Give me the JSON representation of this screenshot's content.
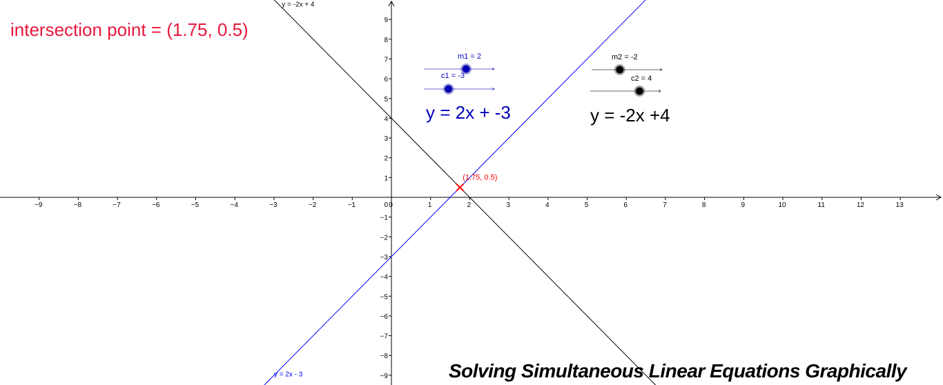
{
  "result": {
    "label": "intersection point = (1.75, 0.5)",
    "color": "#e8173c"
  },
  "equations": [
    {
      "text": "y = 2x + -3",
      "color": "#0000bb"
    },
    {
      "text": "y = -2x +4",
      "color": "#000000"
    }
  ],
  "sliders": [
    {
      "label": "m1 = 2",
      "value": 2,
      "color": "#0000bb"
    },
    {
      "label": "c1 = -3",
      "value": -3,
      "color": "#0000bb"
    },
    {
      "label": "m2 = -2",
      "value": -2,
      "color": "#000000"
    },
    {
      "label": "c2 = 4",
      "value": 4,
      "color": "#000000"
    }
  ],
  "title": "Solving Simultaneous Linear Equations Graphically",
  "chart_data": {
    "type": "line",
    "xlim": [
      -10,
      14
    ],
    "ylim": [
      -9.3,
      10
    ],
    "xticks": [
      -9,
      -8,
      -7,
      -6,
      -5,
      -4,
      -3,
      -2,
      -1,
      0,
      1,
      2,
      3,
      4,
      5,
      6,
      7,
      8,
      9,
      10,
      11,
      12,
      13
    ],
    "yticks": [
      -9,
      -8,
      -7,
      -6,
      -5,
      -4,
      -3,
      -2,
      -1,
      1,
      2,
      3,
      4,
      5,
      6,
      7,
      8,
      9
    ],
    "origin_label": "0",
    "grid": false,
    "series": [
      {
        "name": "y = 2x - 3",
        "slope": 2,
        "intercept": -3,
        "color": "#0000ff"
      },
      {
        "name": "y = -2x + 4",
        "slope": -2,
        "intercept": 4,
        "color": "#000000"
      }
    ],
    "points": [
      {
        "x": 1.75,
        "y": 0.5,
        "label": "(1.75, 0.5)",
        "color": "#ff0000"
      }
    ]
  }
}
